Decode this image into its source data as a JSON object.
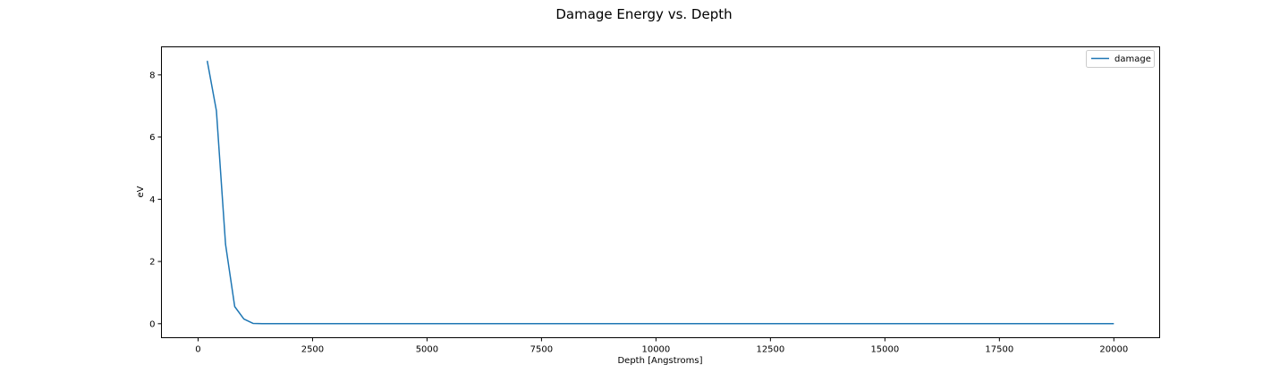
{
  "chart_data": {
    "type": "line",
    "title": "Damage Energy vs. Depth",
    "xlabel": "Depth [Angstroms]",
    "ylabel": "eV",
    "xlim": [
      -800,
      21000
    ],
    "ylim": [
      -0.45,
      8.9
    ],
    "x_ticks": [
      0,
      2500,
      5000,
      7500,
      10000,
      12500,
      15000,
      17500,
      20000
    ],
    "y_ticks": [
      0,
      2,
      4,
      6,
      8
    ],
    "grid": false,
    "legend_position": "top-right",
    "series": [
      {
        "name": "damage",
        "color": "#1f77b4",
        "x": [
          200,
          400,
          600,
          800,
          1000,
          1200,
          1400,
          1600,
          1800,
          2000,
          20000
        ],
        "y": [
          8.45,
          6.85,
          2.55,
          0.55,
          0.15,
          0.01,
          0.0,
          0.0,
          0.0,
          0.0,
          0.0
        ]
      }
    ]
  }
}
